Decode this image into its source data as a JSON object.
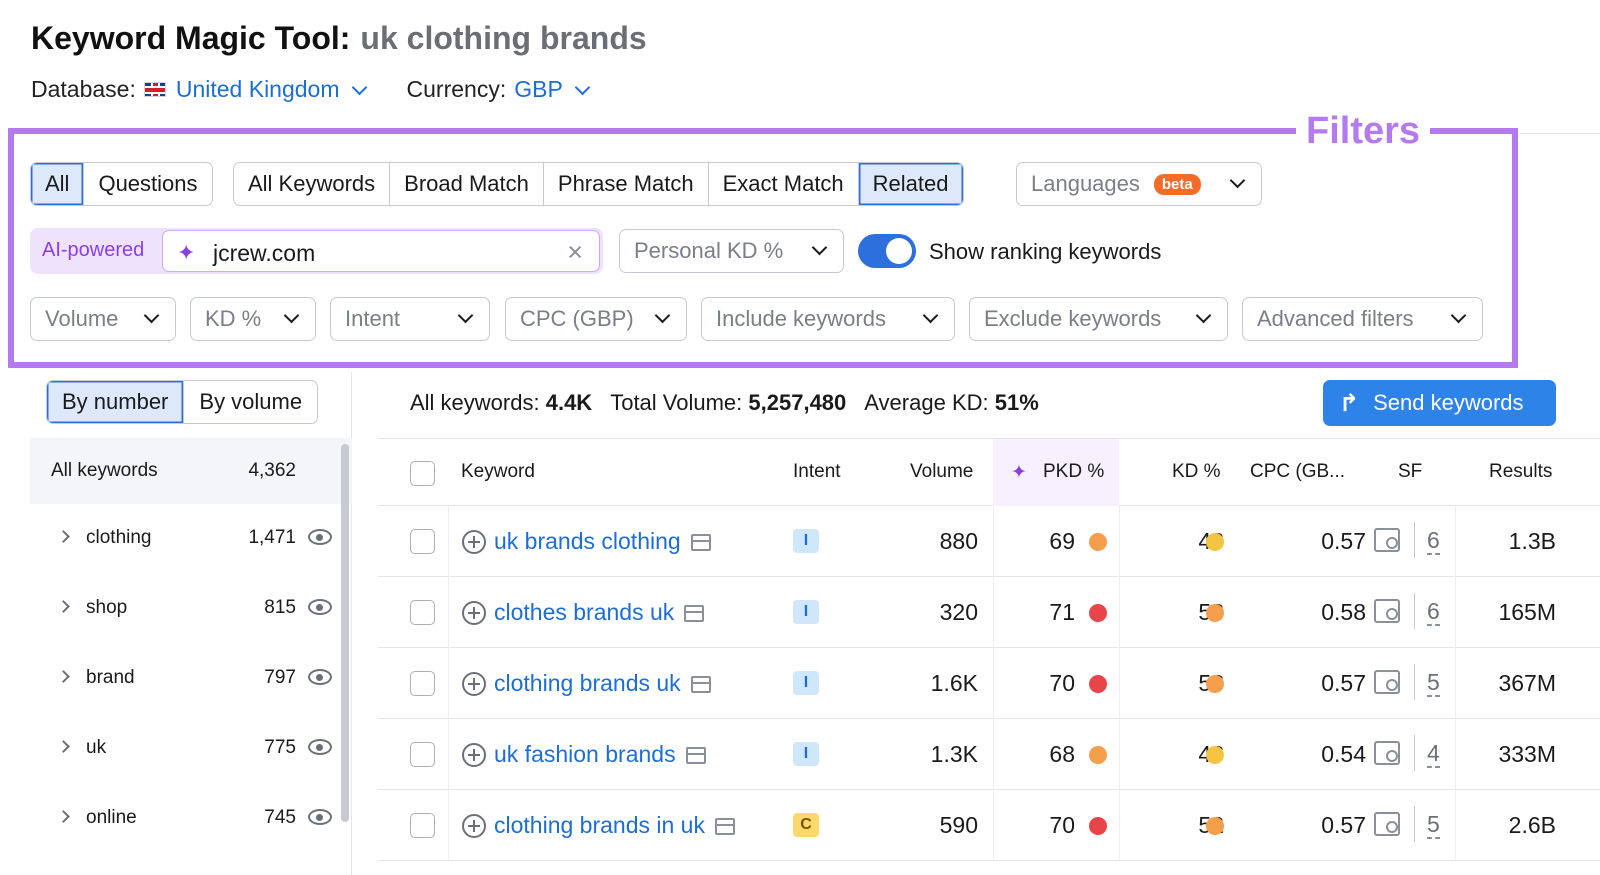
{
  "header": {
    "title": "Keyword Magic Tool:",
    "query": "uk clothing brands",
    "database_label": "Database:",
    "database_value": "United Kingdom",
    "currency_label": "Currency:",
    "currency_value": "GBP"
  },
  "annotation": {
    "label": "Filters",
    "color": "#b57af0"
  },
  "filters": {
    "type_tabs": [
      "All",
      "Questions"
    ],
    "type_active": "All",
    "match_tabs": [
      "All Keywords",
      "Broad Match",
      "Phrase Match",
      "Exact Match",
      "Related"
    ],
    "match_active": "Related",
    "languages": {
      "label": "Languages",
      "badge": "beta"
    },
    "ai": {
      "label": "AI-powered",
      "value": "jcrew.com"
    },
    "personal_kd": "Personal KD %",
    "show_ranking": {
      "label": "Show ranking keywords",
      "enabled": true
    },
    "dropdowns": [
      "Volume",
      "KD %",
      "Intent",
      "CPC (GBP)",
      "Include keywords",
      "Exclude keywords",
      "Advanced filters"
    ]
  },
  "sidebar": {
    "tabs": [
      "By number",
      "By volume"
    ],
    "active_tab": "By number",
    "all_label": "All keywords",
    "all_count": "4,362",
    "groups": [
      {
        "label": "clothing",
        "count": "1,471"
      },
      {
        "label": "shop",
        "count": "815"
      },
      {
        "label": "brand",
        "count": "797"
      },
      {
        "label": "uk",
        "count": "775"
      },
      {
        "label": "online",
        "count": "745"
      }
    ]
  },
  "summary": {
    "all_label": "All keywords:",
    "all_value": "4.4K",
    "volume_label": "Total Volume:",
    "volume_value": "5,257,480",
    "kd_label": "Average KD:",
    "kd_value": "51%",
    "send_button": "Send keywords"
  },
  "table": {
    "columns": {
      "keyword": "Keyword",
      "intent": "Intent",
      "volume": "Volume",
      "pkd": "PKD %",
      "kd": "KD %",
      "cpc": "CPC (GB...",
      "sf": "SF",
      "results": "Results"
    },
    "rows": [
      {
        "keyword": "uk brands clothing",
        "intent": "I",
        "volume": "880",
        "pkd": "69",
        "pkd_color": "#f59e4b",
        "kd": "48",
        "kd_color": "#f5c542",
        "cpc": "0.57",
        "sf": "6",
        "results": "1.3B"
      },
      {
        "keyword": "clothes brands uk",
        "intent": "I",
        "volume": "320",
        "pkd": "71",
        "pkd_color": "#e8454a",
        "kd": "58",
        "kd_color": "#f59e4b",
        "cpc": "0.58",
        "sf": "6",
        "results": "165M"
      },
      {
        "keyword": "clothing brands uk",
        "intent": "I",
        "volume": "1.6K",
        "pkd": "70",
        "pkd_color": "#e8454a",
        "kd": "53",
        "kd_color": "#f59e4b",
        "cpc": "0.57",
        "sf": "5",
        "results": "367M"
      },
      {
        "keyword": "uk fashion brands",
        "intent": "I",
        "volume": "1.3K",
        "pkd": "68",
        "pkd_color": "#f59e4b",
        "kd": "43",
        "kd_color": "#f5c542",
        "cpc": "0.54",
        "sf": "4",
        "results": "333M"
      },
      {
        "keyword": "clothing brands in uk",
        "intent": "C",
        "volume": "590",
        "pkd": "70",
        "pkd_color": "#e8454a",
        "kd": "52",
        "kd_color": "#f59e4b",
        "cpc": "0.57",
        "sf": "5",
        "results": "2.6B"
      }
    ]
  }
}
